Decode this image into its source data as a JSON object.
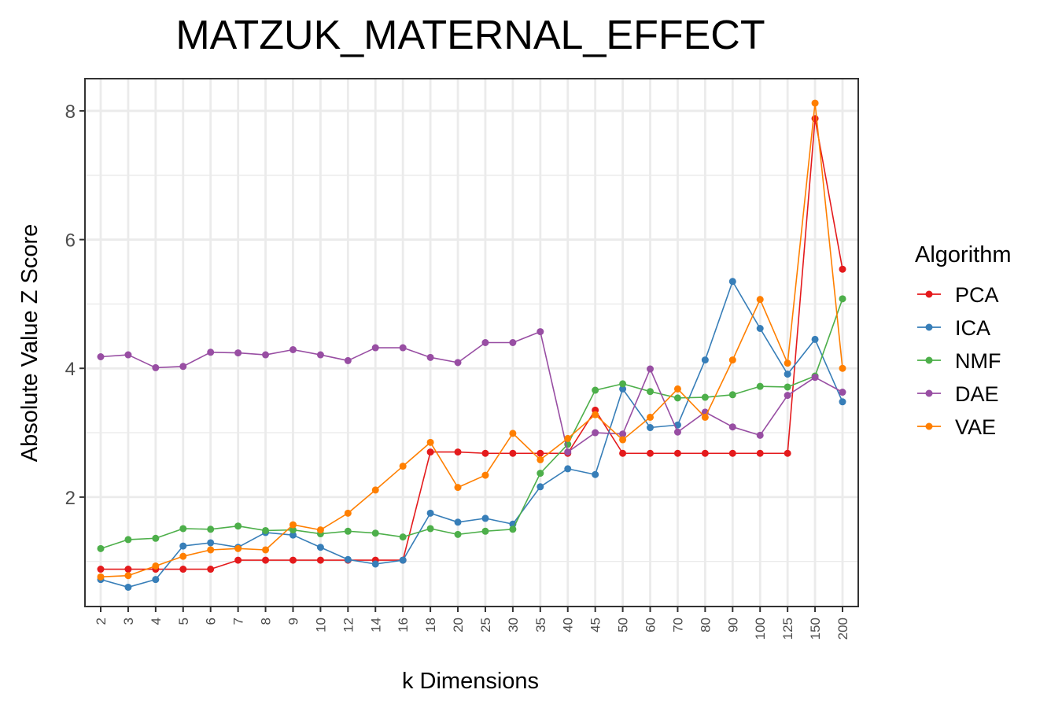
{
  "chart_data": {
    "type": "line",
    "title": "MATZUK_MATERNAL_EFFECT",
    "xlabel": "k Dimensions",
    "ylabel": "Absolute Value Z Score",
    "categories": [
      "2",
      "3",
      "4",
      "5",
      "6",
      "7",
      "8",
      "9",
      "10",
      "12",
      "14",
      "16",
      "18",
      "20",
      "25",
      "30",
      "35",
      "40",
      "45",
      "50",
      "60",
      "70",
      "80",
      "90",
      "100",
      "125",
      "150",
      "200"
    ],
    "ylim": [
      0.3,
      8.5
    ],
    "yticks": [
      "2",
      "4",
      "6",
      "8"
    ],
    "grid": true,
    "legend": {
      "title": "Algorithm",
      "position": "right"
    },
    "series": [
      {
        "name": "PCA",
        "color": "#E41A1C",
        "values": [
          0.88,
          0.88,
          0.88,
          0.88,
          0.88,
          1.02,
          1.02,
          1.02,
          1.02,
          1.02,
          1.02,
          1.02,
          2.7,
          2.7,
          2.68,
          2.68,
          2.68,
          2.68,
          3.35,
          2.68,
          2.68,
          2.68,
          2.68,
          2.68,
          2.68,
          2.68,
          7.88,
          5.54
        ]
      },
      {
        "name": "ICA",
        "color": "#377EB8",
        "values": [
          0.72,
          0.6,
          0.72,
          1.24,
          1.29,
          1.22,
          1.45,
          1.41,
          1.22,
          1.03,
          0.96,
          1.02,
          1.75,
          1.61,
          1.67,
          1.58,
          2.16,
          2.44,
          2.35,
          3.68,
          3.08,
          3.12,
          4.13,
          5.35,
          4.62,
          3.91,
          4.45,
          3.48
        ]
      },
      {
        "name": "NMF",
        "color": "#4DAF4A",
        "values": [
          1.2,
          1.34,
          1.36,
          1.51,
          1.5,
          1.55,
          1.48,
          1.49,
          1.43,
          1.47,
          1.44,
          1.38,
          1.51,
          1.42,
          1.47,
          1.5,
          2.37,
          2.82,
          3.66,
          3.76,
          3.64,
          3.54,
          3.55,
          3.59,
          3.72,
          3.71,
          3.88,
          5.08
        ]
      },
      {
        "name": "DAE",
        "color": "#984EA3",
        "values": [
          4.18,
          4.21,
          4.01,
          4.03,
          4.25,
          4.24,
          4.21,
          4.29,
          4.21,
          4.12,
          4.32,
          4.32,
          4.17,
          4.09,
          4.4,
          4.4,
          4.57,
          2.7,
          3.0,
          2.98,
          3.99,
          3.01,
          3.32,
          3.09,
          2.96,
          3.58,
          3.86,
          3.63
        ]
      },
      {
        "name": "VAE",
        "color": "#FF7F00",
        "values": [
          0.76,
          0.78,
          0.93,
          1.08,
          1.18,
          1.2,
          1.18,
          1.57,
          1.49,
          1.75,
          2.11,
          2.48,
          2.85,
          2.15,
          2.34,
          2.99,
          2.58,
          2.91,
          3.28,
          2.89,
          3.24,
          3.68,
          3.24,
          4.13,
          5.07,
          4.08,
          8.12,
          4.0
        ]
      }
    ]
  }
}
